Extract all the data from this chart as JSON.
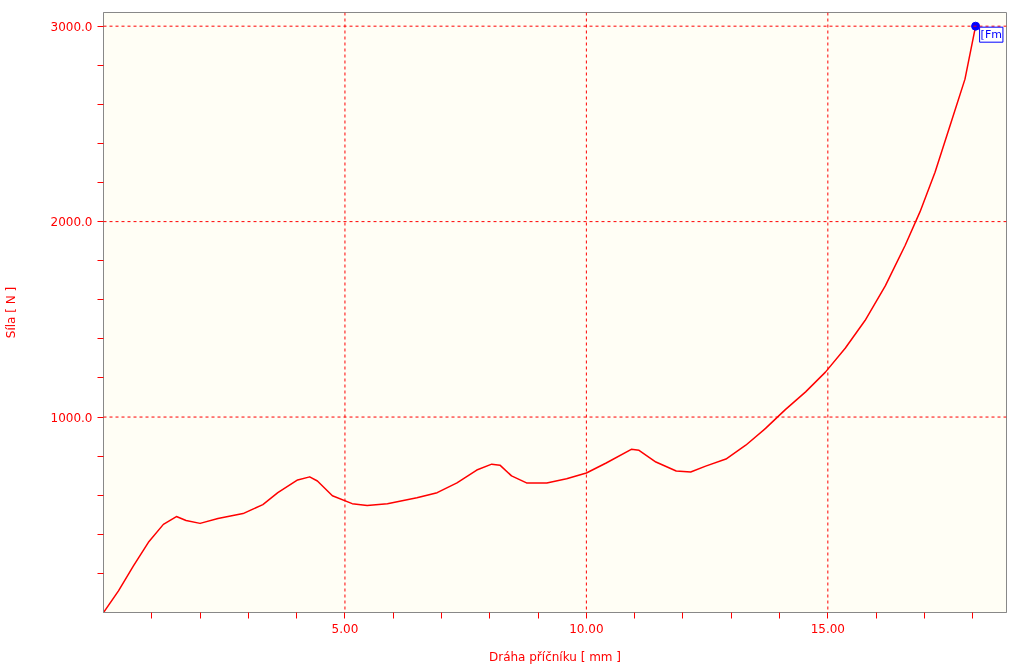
{
  "chart_data": {
    "type": "line",
    "xlabel": "Dráha příčníku [ mm ]",
    "ylabel": "Síla [ N ]",
    "x": [
      0,
      0.31,
      0.62,
      0.93,
      1.24,
      1.51,
      1.71,
      2.0,
      2.37,
      2.89,
      3.3,
      3.61,
      4.02,
      4.27,
      4.43,
      4.74,
      5.15,
      5.46,
      5.88,
      6.49,
      6.91,
      7.32,
      7.73,
      8.04,
      8.21,
      8.45,
      8.76,
      9.18,
      9.59,
      10.0,
      10.41,
      10.93,
      11.09,
      11.44,
      11.86,
      12.16,
      12.47,
      12.89,
      13.3,
      13.71,
      14.12,
      14.54,
      14.95,
      15.36,
      15.77,
      16.19,
      16.6,
      16.91,
      17.22,
      17.53,
      17.84,
      18.06
    ],
    "series": [
      {
        "color": "#ff0000",
        "values": [
          0,
          111,
          238,
          359,
          451,
          491,
          471,
          456,
          481,
          506,
          552,
          613,
          678,
          694,
          673,
          597,
          557,
          547,
          557,
          587,
          613,
          663,
          729,
          759,
          754,
          699,
          663,
          663,
          684,
          714,
          765,
          835,
          830,
          770,
          724,
          719,
          749,
          785,
          856,
          942,
          1038,
          1129,
          1230,
          1352,
          1494,
          1671,
          1878,
          2051,
          2253,
          2491,
          2729,
          3000
        ]
      }
    ],
    "xlim": [
      0,
      18.7
    ],
    "ylim": [
      0,
      3070
    ],
    "xticks": [
      {
        "value": 1,
        "label": null
      },
      {
        "value": 2,
        "label": null
      },
      {
        "value": 3,
        "label": null
      },
      {
        "value": 4,
        "label": null
      },
      {
        "value": 5,
        "label": "5.00"
      },
      {
        "value": 6,
        "label": null
      },
      {
        "value": 7,
        "label": null
      },
      {
        "value": 8,
        "label": null
      },
      {
        "value": 9,
        "label": null
      },
      {
        "value": 10,
        "label": "10.00"
      },
      {
        "value": 11,
        "label": null
      },
      {
        "value": 12,
        "label": null
      },
      {
        "value": 13,
        "label": null
      },
      {
        "value": 14,
        "label": null
      },
      {
        "value": 15,
        "label": "15.00"
      },
      {
        "value": 16,
        "label": null
      },
      {
        "value": 17,
        "label": null
      },
      {
        "value": 18,
        "label": null
      }
    ],
    "yticks": [
      {
        "value": 200,
        "label": null
      },
      {
        "value": 400,
        "label": null
      },
      {
        "value": 600,
        "label": null
      },
      {
        "value": 800,
        "label": null
      },
      {
        "value": 1000,
        "label": "1000.0"
      },
      {
        "value": 1200,
        "label": null
      },
      {
        "value": 1400,
        "label": null
      },
      {
        "value": 1600,
        "label": null
      },
      {
        "value": 1800,
        "label": null
      },
      {
        "value": 2000,
        "label": "2000.0"
      },
      {
        "value": 2200,
        "label": null
      },
      {
        "value": 2400,
        "label": null
      },
      {
        "value": 2600,
        "label": null
      },
      {
        "value": 2800,
        "label": null
      },
      {
        "value": 3000,
        "label": "3000.0"
      }
    ],
    "grid": true,
    "line_style": "solid",
    "marker": "none",
    "annotations": [
      {
        "text": "[Fm",
        "x": 18.06,
        "y": 3000
      }
    ]
  }
}
